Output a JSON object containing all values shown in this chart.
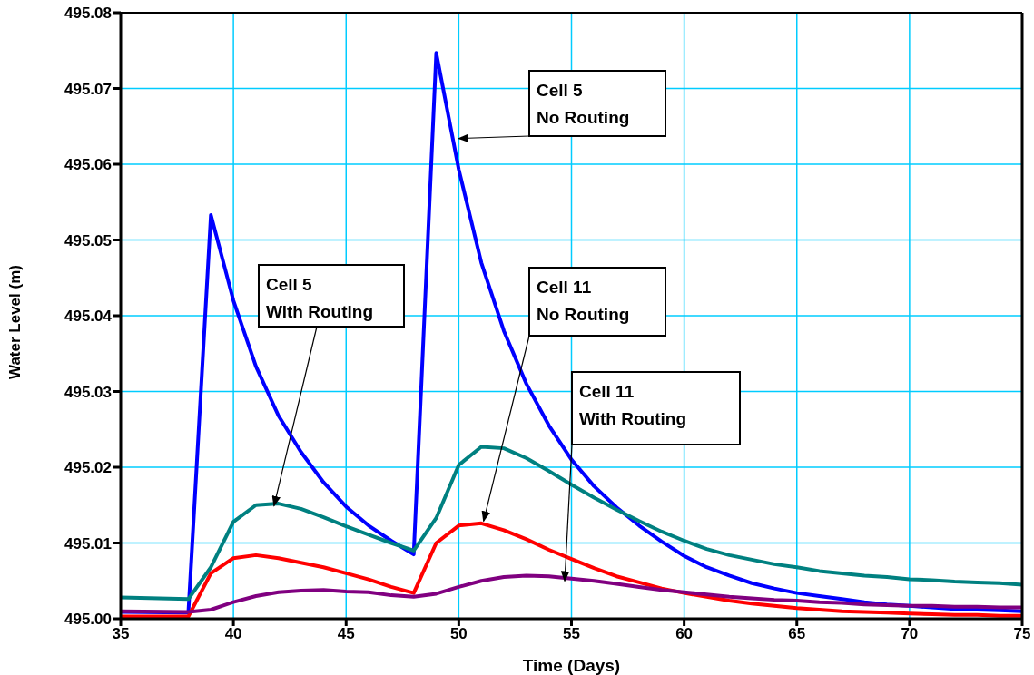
{
  "chart_data": {
    "type": "line",
    "xlabel": "Time (Days)",
    "ylabel": "Water Level (m)",
    "x": [
      35,
      38,
      39,
      40,
      41,
      42,
      43,
      44,
      45,
      46,
      47,
      48,
      49,
      50,
      51,
      52,
      53,
      54,
      55,
      56,
      57,
      58,
      59,
      60,
      61,
      62,
      63,
      64,
      65,
      66,
      67,
      68,
      69,
      70,
      71,
      72,
      73,
      74,
      75
    ],
    "series": [
      {
        "color": "#0000ff",
        "values": [
          495.0009,
          495.0008,
          495.0533,
          495.042,
          495.0333,
          495.0268,
          495.022,
          495.018,
          495.0148,
          495.0123,
          495.0103,
          495.0085,
          495.0747,
          495.0593,
          495.047,
          495.038,
          495.031,
          495.0255,
          495.021,
          495.0175,
          495.0147,
          495.0123,
          495.0102,
          495.0083,
          495.0068,
          495.0057,
          495.0047,
          495.004,
          495.0034,
          495.003,
          495.0026,
          495.0022,
          495.0019,
          495.0017,
          495.0015,
          495.0013,
          495.0012,
          495.0011,
          495.001
        ]
      },
      {
        "color": "#008080",
        "values": [
          495.0028,
          495.0026,
          495.0068,
          495.0128,
          495.015,
          495.0152,
          495.0145,
          495.0134,
          495.0122,
          495.0111,
          495.01,
          495.009,
          495.0133,
          495.0203,
          495.0227,
          495.0225,
          495.0212,
          495.0195,
          495.0177,
          495.016,
          495.0144,
          495.0129,
          495.0115,
          495.0103,
          495.0092,
          495.0084,
          495.0078,
          495.0072,
          495.0068,
          495.0063,
          495.006,
          495.0057,
          495.0055,
          495.0052,
          495.0051,
          495.0049,
          495.0048,
          495.0047,
          495.0045
        ]
      },
      {
        "color": "#ff0000",
        "values": [
          495.0003,
          495.0003,
          495.006,
          495.008,
          495.0084,
          495.008,
          495.0074,
          495.0068,
          495.006,
          495.0052,
          495.0042,
          495.0034,
          495.01,
          495.0123,
          495.0126,
          495.0117,
          495.0105,
          495.0091,
          495.0079,
          495.0067,
          495.0056,
          495.0048,
          495.004,
          495.0034,
          495.0029,
          495.0024,
          495.002,
          495.0017,
          495.0014,
          495.0012,
          495.001,
          495.0009,
          495.0008,
          495.0007,
          495.0006,
          495.0005,
          495.0005,
          495.0004,
          495.0004
        ]
      },
      {
        "color": "#800080",
        "values": [
          495.001,
          495.0009,
          495.0012,
          495.0022,
          495.003,
          495.0035,
          495.0037,
          495.0038,
          495.0036,
          495.0035,
          495.0031,
          495.0029,
          495.0033,
          495.0042,
          495.005,
          495.0055,
          495.0057,
          495.0056,
          495.0053,
          495.005,
          495.0046,
          495.0042,
          495.0038,
          495.0035,
          495.0032,
          495.0029,
          495.0027,
          495.0025,
          495.0024,
          495.0022,
          495.0021,
          495.0019,
          495.0018,
          495.0017,
          495.0017,
          495.0016,
          495.0016,
          495.0015,
          495.0015
        ]
      }
    ],
    "xlim": [
      35,
      75
    ],
    "xticks": [
      35,
      40,
      45,
      50,
      55,
      60,
      65,
      70,
      75
    ],
    "ylim": [
      495,
      495.08
    ],
    "yticks": [
      {
        "value": 495,
        "label": "495.00"
      },
      {
        "value": 495.01,
        "label": "495.01"
      },
      {
        "value": 495.02,
        "label": "495.02"
      },
      {
        "value": 495.03,
        "label": "495.03"
      },
      {
        "value": 495.04,
        "label": "495.04"
      },
      {
        "value": 495.05,
        "label": "495.05"
      },
      {
        "value": 495.06,
        "label": "495.06"
      },
      {
        "value": 495.07,
        "label": "495.07"
      },
      {
        "value": 495.08,
        "label": "495.08"
      }
    ],
    "grid": true,
    "legend": false,
    "line_style": "solid",
    "marker": "none",
    "annotations": [
      {
        "text": "Cell 5\nNo Routing",
        "x": 50,
        "y": 495.0634
      },
      {
        "text": "Cell 5\nWith Routing",
        "x": 41.8,
        "y": 495.0149
      },
      {
        "text": "Cell 11\nNo Routing",
        "x": 51.1,
        "y": 495.0129
      },
      {
        "text": "Cell 11\nWith Routing",
        "x": 54.7,
        "y": 495.005
      }
    ]
  }
}
